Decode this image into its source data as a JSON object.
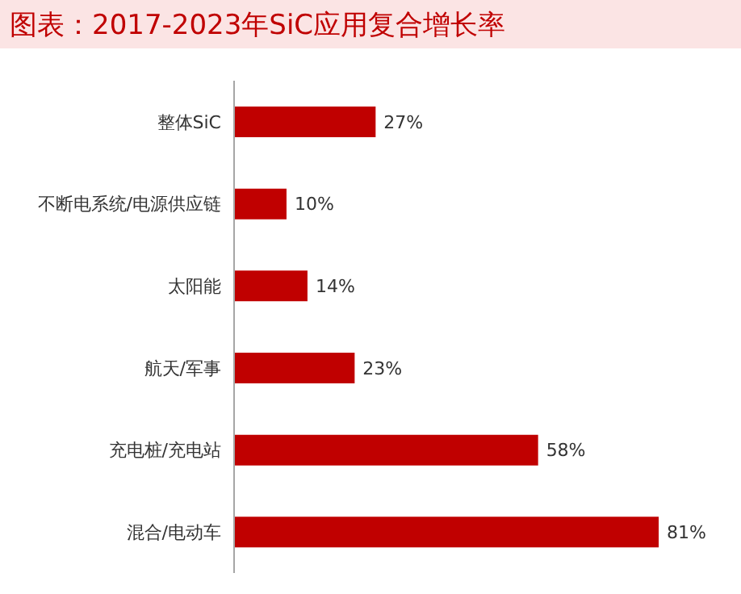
{
  "chart_data": {
    "type": "bar",
    "orientation": "horizontal",
    "title": "图表：2017-2023年SiC应用复合增长率",
    "categories": [
      "整体SiC",
      "不断电系统/电源供应链",
      "太阳能",
      "航天/军事",
      "充电桩/充电站",
      "混合/电动车"
    ],
    "values": [
      27,
      10,
      14,
      23,
      58,
      81
    ],
    "value_labels": [
      "27%",
      "10%",
      "14%",
      "23%",
      "58%",
      "81%"
    ],
    "color": "#c00000",
    "tick_labels": "y",
    "grid": false,
    "legend": false
  }
}
